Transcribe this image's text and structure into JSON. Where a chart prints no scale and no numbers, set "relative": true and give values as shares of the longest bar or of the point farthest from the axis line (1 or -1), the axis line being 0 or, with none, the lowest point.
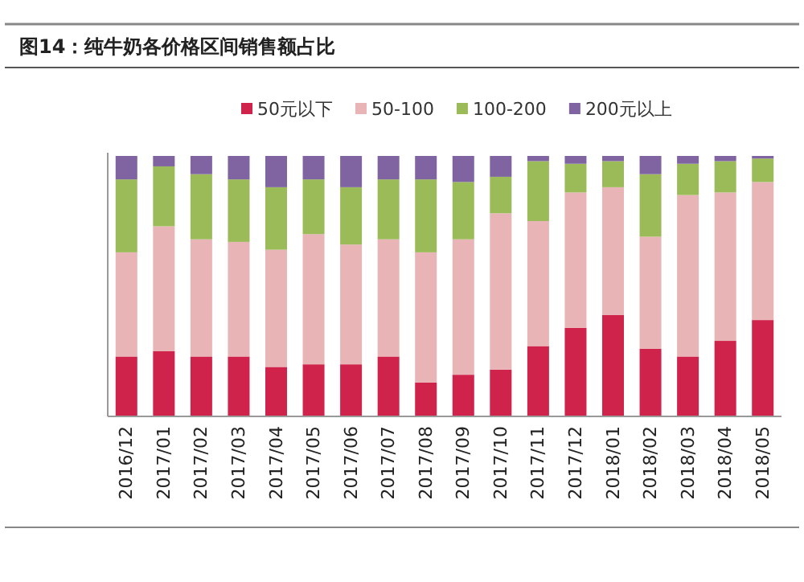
{
  "chart_data": {
    "type": "bar",
    "title": "图14：纯牛奶各价格区间销售额占比",
    "stacked": true,
    "relative": true,
    "legend": "top",
    "tick_labels": "x",
    "categories": [
      "2016/12",
      "2017/01",
      "2017/02",
      "2017/03",
      "2017/04",
      "2017/05",
      "2017/06",
      "2017/07",
      "2017/08",
      "2017/09",
      "2017/10",
      "2017/11",
      "2017/12",
      "2018/01",
      "2018/02",
      "2018/03",
      "2018/04",
      "2018/05"
    ],
    "series": [
      {
        "name": "50元以下",
        "color": "#d0234c",
        "values": [
          0.23,
          0.25,
          0.23,
          0.23,
          0.19,
          0.2,
          0.2,
          0.23,
          0.13,
          0.16,
          0.18,
          0.27,
          0.34,
          0.39,
          0.26,
          0.23,
          0.29,
          0.37
        ]
      },
      {
        "name": "50-100",
        "color": "#e8b4b6",
        "values": [
          0.4,
          0.48,
          0.45,
          0.44,
          0.45,
          0.5,
          0.46,
          0.45,
          0.5,
          0.52,
          0.6,
          0.48,
          0.52,
          0.49,
          0.43,
          0.62,
          0.57,
          0.53
        ]
      },
      {
        "name": "100-200",
        "color": "#9bbb59",
        "values": [
          0.28,
          0.23,
          0.25,
          0.24,
          0.24,
          0.21,
          0.22,
          0.23,
          0.28,
          0.22,
          0.14,
          0.23,
          0.11,
          0.1,
          0.24,
          0.12,
          0.12,
          0.09
        ]
      },
      {
        "name": "200元以上",
        "color": "#8064a2",
        "values": [
          0.09,
          0.04,
          0.07,
          0.09,
          0.12,
          0.09,
          0.12,
          0.09,
          0.09,
          0.1,
          0.08,
          0.02,
          0.03,
          0.02,
          0.07,
          0.03,
          0.02,
          0.01
        ]
      }
    ]
  }
}
